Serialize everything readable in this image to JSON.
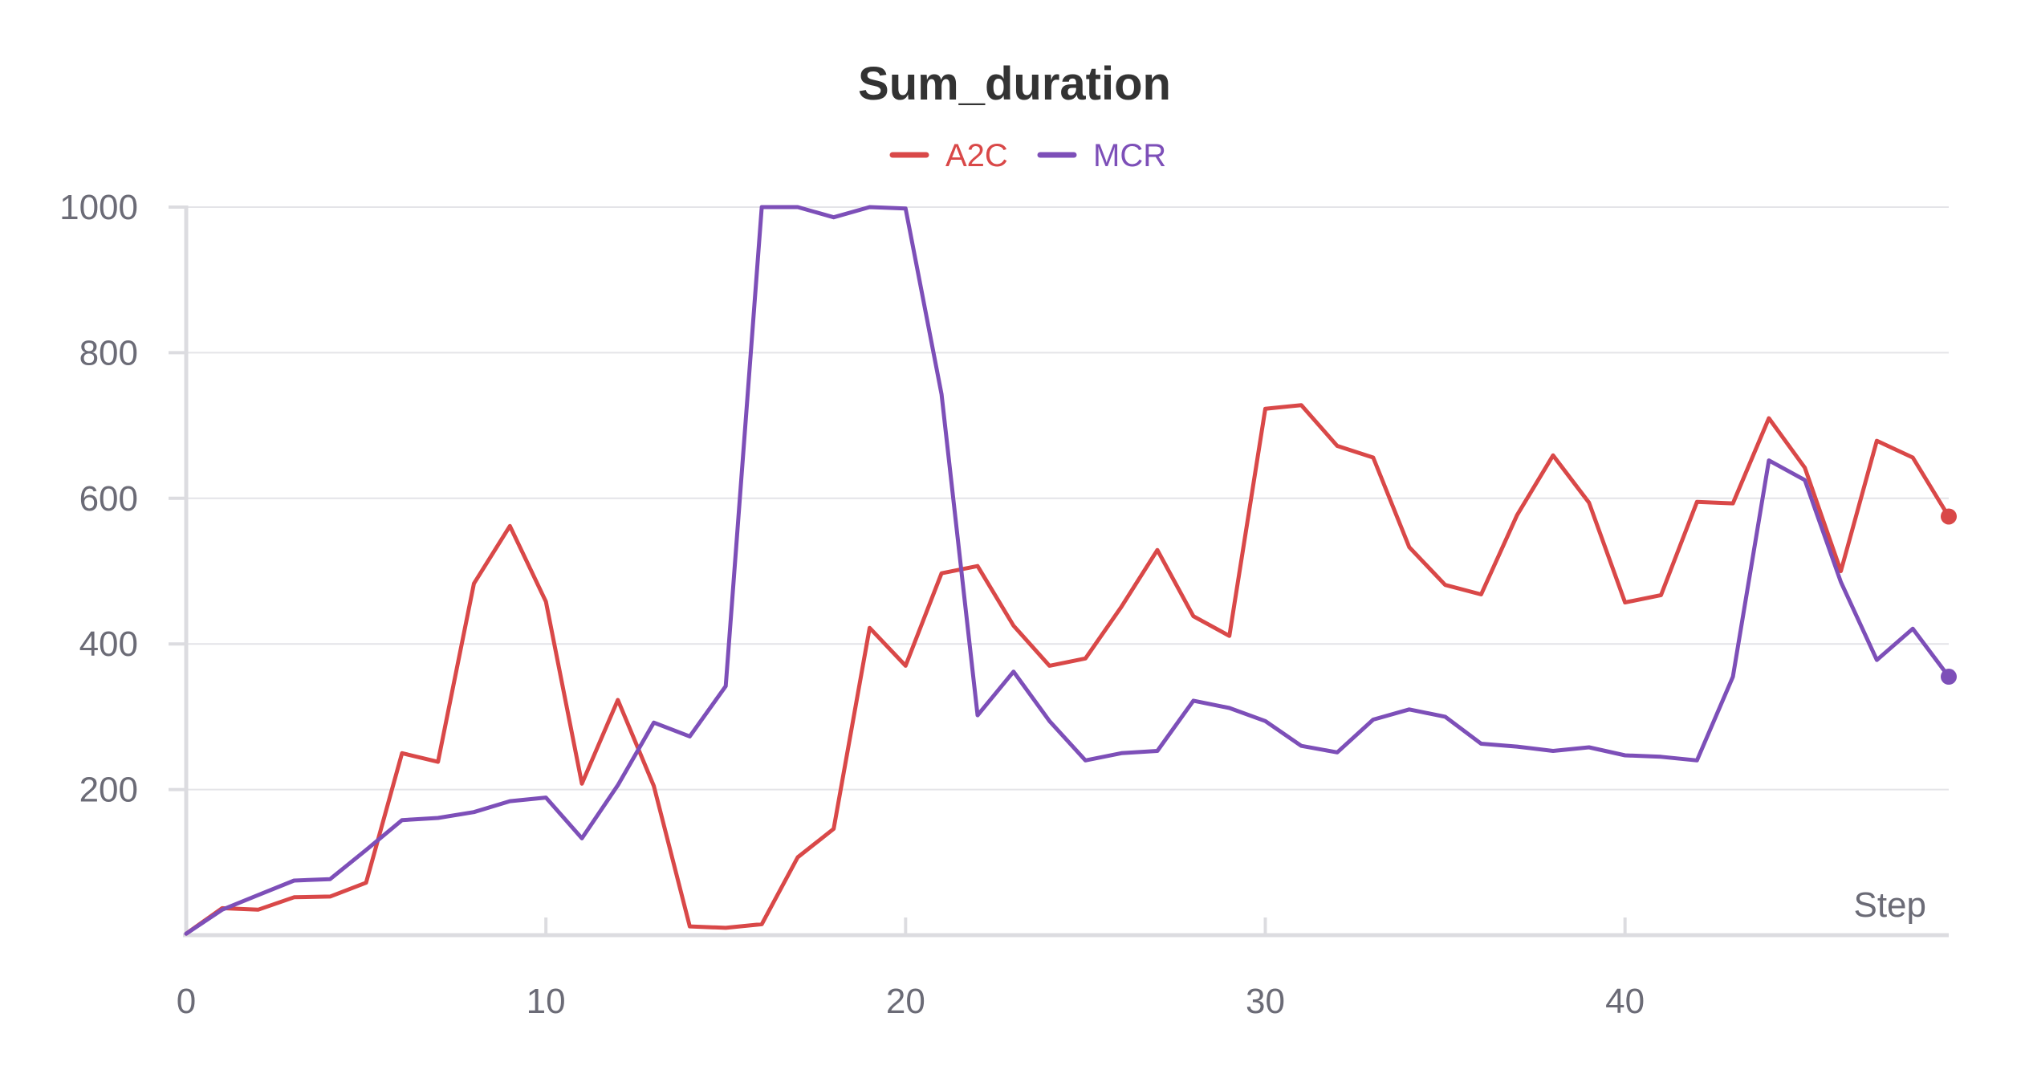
{
  "chart_data": {
    "type": "line",
    "title": "Sum_duration",
    "xlabel": "Step",
    "ylabel": "",
    "xlim": [
      0,
      49
    ],
    "ylim": [
      0,
      1000
    ],
    "x_ticks": [
      0,
      10,
      20,
      30,
      40
    ],
    "y_ticks": [
      200,
      400,
      600,
      800,
      1000
    ],
    "grid": "horizontal",
    "legend_placement": "top-center",
    "end_markers": true,
    "x": [
      0,
      1,
      2,
      3,
      4,
      5,
      6,
      7,
      8,
      9,
      10,
      11,
      12,
      13,
      14,
      15,
      16,
      17,
      18,
      19,
      20,
      21,
      22,
      23,
      24,
      25,
      26,
      27,
      28,
      29,
      30,
      31,
      32,
      33,
      34,
      35,
      36,
      37,
      38,
      39,
      40,
      41,
      42,
      43,
      44,
      45,
      46,
      47,
      48,
      49
    ],
    "series": [
      {
        "name": "A2C",
        "color": "#d94848",
        "values": [
          2,
          37,
          35,
          52,
          53,
          72,
          250,
          238,
          483,
          562,
          458,
          208,
          323,
          205,
          12,
          10,
          15,
          107,
          146,
          422,
          370,
          497,
          507,
          425,
          370,
          380,
          451,
          529,
          438,
          411,
          723,
          728,
          672,
          656,
          533,
          481,
          468,
          577,
          659,
          594,
          457,
          467,
          595,
          593,
          710,
          642,
          500,
          679,
          656,
          575
        ]
      },
      {
        "name": "MCR",
        "color": "#7d4fb8",
        "values": [
          2,
          35,
          55,
          75,
          77,
          117,
          158,
          161,
          169,
          184,
          189,
          133,
          206,
          292,
          273,
          342,
          1000,
          1000,
          986,
          1000,
          998,
          743,
          302,
          362,
          294,
          240,
          250,
          253,
          322,
          312,
          294,
          260,
          251,
          296,
          310,
          300,
          263,
          259,
          253,
          258,
          247,
          245,
          240,
          355,
          652,
          625,
          485,
          378,
          421,
          355
        ]
      }
    ]
  }
}
